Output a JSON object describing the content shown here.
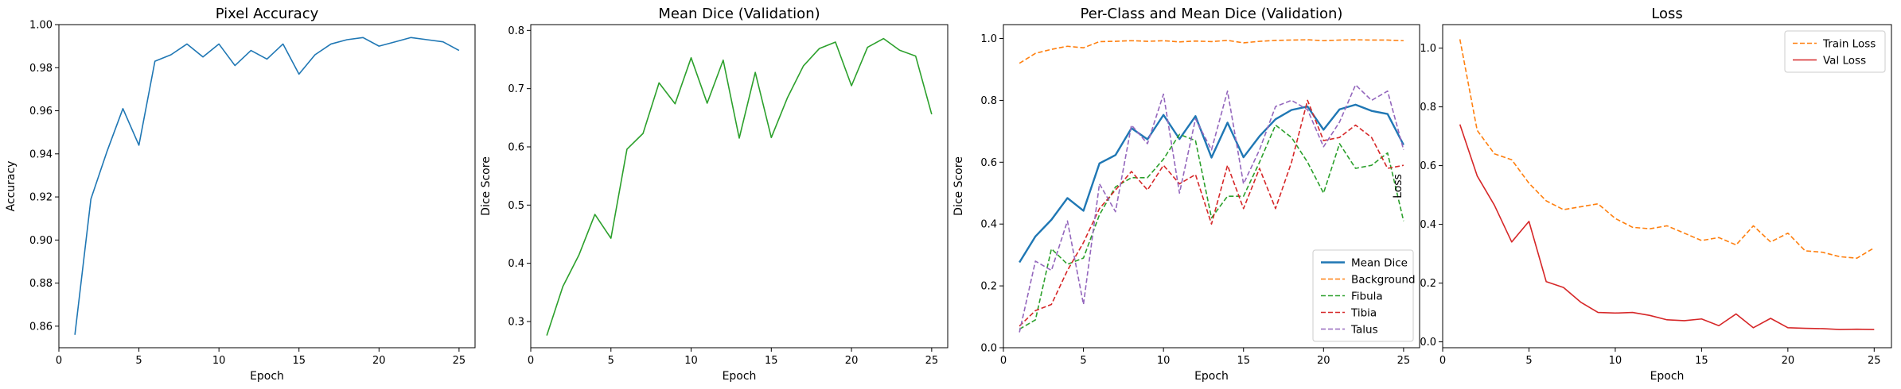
{
  "chart_data": [
    {
      "id": "pixel-accuracy",
      "type": "line",
      "title": "Pixel Accuracy",
      "xlabel": "Epoch",
      "ylabel": "Accuracy",
      "xlim": [
        0,
        26
      ],
      "ylim": [
        0.85,
        1.0
      ],
      "xticks": [
        0,
        5,
        10,
        15,
        20,
        25
      ],
      "xtick_labels": [
        "0",
        "5",
        "10",
        "15",
        "20",
        "25"
      ],
      "yticks": [
        0.86,
        0.88,
        0.9,
        0.92,
        0.94,
        0.96,
        0.98,
        1.0
      ],
      "ytick_labels": [
        "0.86",
        "0.88",
        "0.90",
        "0.92",
        "0.94",
        "0.96",
        "0.98",
        "1.00"
      ],
      "grid": false,
      "x": [
        1,
        2,
        3,
        4,
        5,
        6,
        7,
        8,
        9,
        10,
        11,
        12,
        13,
        14,
        15,
        16,
        17,
        18,
        19,
        20,
        21,
        22,
        23,
        24,
        25
      ],
      "series": [
        {
          "color": "#1f77b4",
          "dash": "solid",
          "width": 1.6,
          "values": [
            0.856,
            0.919,
            0.941,
            0.961,
            0.944,
            0.983,
            0.986,
            0.991,
            0.985,
            0.991,
            0.981,
            0.988,
            0.984,
            0.991,
            0.977,
            0.986,
            0.991,
            0.993,
            0.994,
            0.99,
            0.992,
            0.994,
            0.993,
            0.992,
            0.988
          ]
        }
      ]
    },
    {
      "id": "mean-dice",
      "type": "line",
      "title": "Mean Dice (Validation)",
      "xlabel": "Epoch",
      "ylabel": "Dice Score",
      "xlim": [
        0,
        26
      ],
      "ylim": [
        0.255,
        0.81
      ],
      "xticks": [
        0,
        5,
        10,
        15,
        20,
        25
      ],
      "xtick_labels": [
        "0",
        "5",
        "10",
        "15",
        "20",
        "25"
      ],
      "yticks": [
        0.3,
        0.4,
        0.5,
        0.6,
        0.7,
        0.8
      ],
      "ytick_labels": [
        "0.3",
        "0.4",
        "0.5",
        "0.6",
        "0.7",
        "0.8"
      ],
      "grid": false,
      "x": [
        1,
        2,
        3,
        4,
        5,
        6,
        7,
        8,
        9,
        10,
        11,
        12,
        13,
        14,
        15,
        16,
        17,
        18,
        19,
        20,
        21,
        22,
        23,
        24,
        25
      ],
      "series": [
        {
          "color": "#2ca02c",
          "dash": "solid",
          "width": 1.6,
          "values": [
            0.276,
            0.36,
            0.414,
            0.484,
            0.443,
            0.596,
            0.623,
            0.71,
            0.674,
            0.753,
            0.675,
            0.749,
            0.615,
            0.728,
            0.616,
            0.684,
            0.739,
            0.769,
            0.78,
            0.705,
            0.771,
            0.786,
            0.766,
            0.756,
            0.656
          ]
        }
      ]
    },
    {
      "id": "per-class-dice",
      "type": "line",
      "title": "Per-Class and Mean Dice (Validation)",
      "xlabel": "Epoch",
      "ylabel": "Dice Score",
      "xlim": [
        0,
        26
      ],
      "ylim": [
        0.0,
        1.045
      ],
      "xticks": [
        0,
        5,
        10,
        15,
        20,
        25
      ],
      "xtick_labels": [
        "0",
        "5",
        "10",
        "15",
        "20",
        "25"
      ],
      "yticks": [
        0.0,
        0.2,
        0.4,
        0.6,
        0.8,
        1.0
      ],
      "ytick_labels": [
        "0.0",
        "0.2",
        "0.4",
        "0.6",
        "0.8",
        "1.0"
      ],
      "grid": false,
      "legend": "lower-right",
      "x": [
        1,
        2,
        3,
        4,
        5,
        6,
        7,
        8,
        9,
        10,
        11,
        12,
        13,
        14,
        15,
        16,
        17,
        18,
        19,
        20,
        21,
        22,
        23,
        24,
        25
      ],
      "series": [
        {
          "name": "Mean Dice",
          "color": "#1f77b4",
          "dash": "solid",
          "width": 2.4,
          "values": [
            0.276,
            0.36,
            0.414,
            0.484,
            0.443,
            0.596,
            0.623,
            0.71,
            0.674,
            0.753,
            0.675,
            0.749,
            0.615,
            0.728,
            0.616,
            0.684,
            0.739,
            0.769,
            0.78,
            0.705,
            0.771,
            0.786,
            0.766,
            0.756,
            0.656
          ]
        },
        {
          "name": "Background",
          "color": "#ff7f0e",
          "dash": "dashed",
          "width": 1.6,
          "values": [
            0.92,
            0.952,
            0.965,
            0.975,
            0.97,
            0.99,
            0.991,
            0.993,
            0.991,
            0.993,
            0.989,
            0.992,
            0.99,
            0.994,
            0.986,
            0.991,
            0.994,
            0.995,
            0.996,
            0.993,
            0.995,
            0.996,
            0.995,
            0.995,
            0.993
          ]
        },
        {
          "name": "Fibula",
          "color": "#2ca02c",
          "dash": "dashed",
          "width": 1.6,
          "values": [
            0.06,
            0.09,
            0.32,
            0.27,
            0.29,
            0.43,
            0.52,
            0.55,
            0.55,
            0.61,
            0.69,
            0.67,
            0.42,
            0.49,
            0.49,
            0.6,
            0.72,
            0.68,
            0.6,
            0.5,
            0.66,
            0.58,
            0.59,
            0.63,
            0.41
          ]
        },
        {
          "name": "Tibia",
          "color": "#d62728",
          "dash": "dashed",
          "width": 1.6,
          "values": [
            0.07,
            0.12,
            0.14,
            0.25,
            0.34,
            0.45,
            0.51,
            0.57,
            0.51,
            0.59,
            0.53,
            0.56,
            0.4,
            0.59,
            0.45,
            0.58,
            0.45,
            0.6,
            0.8,
            0.67,
            0.68,
            0.72,
            0.68,
            0.58,
            0.59
          ]
        },
        {
          "name": "Talus",
          "color": "#9467bd",
          "dash": "dashed",
          "width": 1.6,
          "values": [
            0.05,
            0.28,
            0.25,
            0.41,
            0.14,
            0.53,
            0.44,
            0.72,
            0.66,
            0.82,
            0.5,
            0.74,
            0.64,
            0.83,
            0.53,
            0.64,
            0.78,
            0.8,
            0.77,
            0.65,
            0.73,
            0.85,
            0.8,
            0.83,
            0.64
          ]
        }
      ]
    },
    {
      "id": "loss",
      "type": "line",
      "title": "Loss",
      "xlabel": "Epoch",
      "ylabel": "Loss",
      "xlim": [
        0,
        26
      ],
      "ylim": [
        -0.02,
        1.08
      ],
      "xticks": [
        0,
        5,
        10,
        15,
        20,
        25
      ],
      "xtick_labels": [
        "0",
        "5",
        "10",
        "15",
        "20",
        "25"
      ],
      "yticks": [
        0.0,
        0.2,
        0.4,
        0.6,
        0.8,
        1.0
      ],
      "ytick_labels": [
        "0.0",
        "0.2",
        "0.4",
        "0.6",
        "0.8",
        "1.0"
      ],
      "grid": false,
      "legend": "top-right",
      "x": [
        1,
        2,
        3,
        4,
        5,
        6,
        7,
        8,
        9,
        10,
        11,
        12,
        13,
        14,
        15,
        16,
        17,
        18,
        19,
        20,
        21,
        22,
        23,
        24,
        25
      ],
      "series": [
        {
          "name": "Train Loss",
          "color": "#ff7f0e",
          "dash": "dashed",
          "width": 1.6,
          "values": [
            1.03,
            0.72,
            0.64,
            0.62,
            0.54,
            0.48,
            0.45,
            0.46,
            0.47,
            0.42,
            0.39,
            0.385,
            0.395,
            0.37,
            0.345,
            0.355,
            0.33,
            0.395,
            0.34,
            0.37,
            0.31,
            0.305,
            0.29,
            0.285,
            0.32
          ]
        },
        {
          "name": "Val Loss",
          "color": "#d62728",
          "dash": "solid",
          "width": 1.6,
          "values": [
            0.74,
            0.565,
            0.465,
            0.34,
            0.41,
            0.205,
            0.185,
            0.135,
            0.1,
            0.098,
            0.1,
            0.09,
            0.075,
            0.072,
            0.078,
            0.055,
            0.095,
            0.048,
            0.08,
            0.048,
            0.046,
            0.045,
            0.042,
            0.043,
            0.042
          ]
        }
      ]
    }
  ]
}
